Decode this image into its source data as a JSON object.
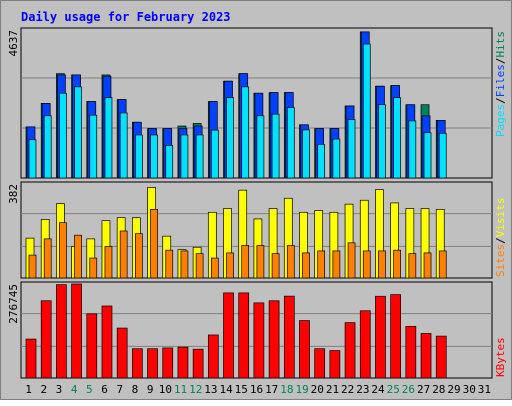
{
  "title": "Daily usage for February 2023",
  "colors": {
    "background": "#c0c0c0",
    "hits": "#00805c",
    "files": "#0040ff",
    "pages": "#00e0ff",
    "visits": "#ffff00",
    "sites": "#ff8000",
    "kbytes": "#ff0000",
    "title": "#0000ff",
    "weekend": "#00805c"
  },
  "chart_data": [
    {
      "type": "bar",
      "name": "hits-files-pages",
      "x": [
        1,
        2,
        3,
        4,
        5,
        6,
        7,
        8,
        9,
        10,
        11,
        12,
        13,
        14,
        15,
        16,
        17,
        18,
        19,
        20,
        21,
        22,
        23,
        24,
        25,
        26,
        27,
        28
      ],
      "ymax_label": "4637",
      "ylim": [
        0,
        4637
      ],
      "series": [
        {
          "name": "Hits",
          "values": [
            1602,
            2337,
            3269,
            3229,
            2396,
            3229,
            2456,
            1747,
            1548,
            1548,
            1628,
            1708,
            2396,
            3033,
            3269,
            2656,
            2676,
            2676,
            1667,
            1548,
            1548,
            2257,
            4578,
            2876,
            2896,
            2296,
            2296,
            1806
          ]
        },
        {
          "name": "Files",
          "values": [
            1602,
            2337,
            3229,
            3229,
            2396,
            3189,
            2456,
            1747,
            1548,
            1548,
            1548,
            1628,
            2396,
            3033,
            3269,
            2656,
            2676,
            2676,
            1667,
            1548,
            1548,
            2257,
            4578,
            2876,
            2896,
            2296,
            1947,
            1806
          ]
        },
        {
          "name": "Pages",
          "values": [
            1199,
            1949,
            2656,
            2856,
            1968,
            2516,
            2039,
            1349,
            1349,
            1020,
            1349,
            1349,
            1500,
            2516,
            2856,
            1949,
            2000,
            2205,
            1508,
            1050,
            1220,
            1828,
            4197,
            2297,
            2516,
            1788,
            1420,
            1400
          ]
        }
      ]
    },
    {
      "type": "bar",
      "name": "visits-sites",
      "x": [
        1,
        2,
        3,
        4,
        5,
        6,
        7,
        8,
        9,
        10,
        11,
        12,
        13,
        14,
        15,
        16,
        17,
        18,
        19,
        20,
        21,
        22,
        23,
        24,
        25,
        26,
        27,
        28
      ],
      "ymax_label": "382",
      "ylim": [
        0,
        382
      ],
      "series": [
        {
          "name": "Visits",
          "values": [
            162,
            238,
            302,
            128,
            159,
            233,
            245,
            245,
            368,
            170,
            115,
            125,
            267,
            282,
            357,
            240,
            282,
            324,
            267,
            274,
            267,
            300,
            316,
            359,
            305,
            282,
            282,
            279
          ]
        },
        {
          "name": "Sites",
          "values": [
            93,
            159,
            225,
            174,
            81,
            128,
            191,
            180,
            279,
            113,
            110,
            99,
            81,
            102,
            132,
            132,
            99,
            132,
            102,
            110,
            110,
            143,
            110,
            110,
            113,
            99,
            102,
            110
          ]
        }
      ]
    },
    {
      "type": "bar",
      "name": "kbytes",
      "x": [
        1,
        2,
        3,
        4,
        5,
        6,
        7,
        8,
        9,
        10,
        11,
        12,
        13,
        14,
        15,
        16,
        17,
        18,
        19,
        20,
        21,
        22,
        23,
        24,
        25,
        26,
        27,
        28
      ],
      "ymax_label": "276745",
      "ylim": [
        0,
        276745
      ],
      "series": [
        {
          "name": "KBytes",
          "values": [
            114600,
            227400,
            274800,
            276700,
            188900,
            212000,
            147000,
            86200,
            86200,
            88500,
            90900,
            84700,
            126700,
            250500,
            250500,
            221200,
            227400,
            241000,
            169100,
            86200,
            80700,
            162900,
            197900,
            240700,
            245400,
            152100,
            131100,
            123300
          ]
        }
      ]
    }
  ],
  "x_labels": [
    "1",
    "2",
    "3",
    "4",
    "5",
    "6",
    "7",
    "8",
    "9",
    "10",
    "11",
    "12",
    "13",
    "14",
    "15",
    "16",
    "17",
    "18",
    "19",
    "20",
    "21",
    "22",
    "23",
    "24",
    "25",
    "26",
    "27",
    "28",
    "29",
    "30",
    "31"
  ],
  "weekend_days": [
    4,
    5,
    11,
    12,
    18,
    19,
    25,
    26
  ],
  "right_labels": {
    "panel1": [
      "Pages",
      "/",
      "Files",
      "/",
      "Hits"
    ],
    "panel2": [
      "Sites",
      "/",
      "Visits"
    ],
    "panel3": [
      "KBytes"
    ]
  }
}
